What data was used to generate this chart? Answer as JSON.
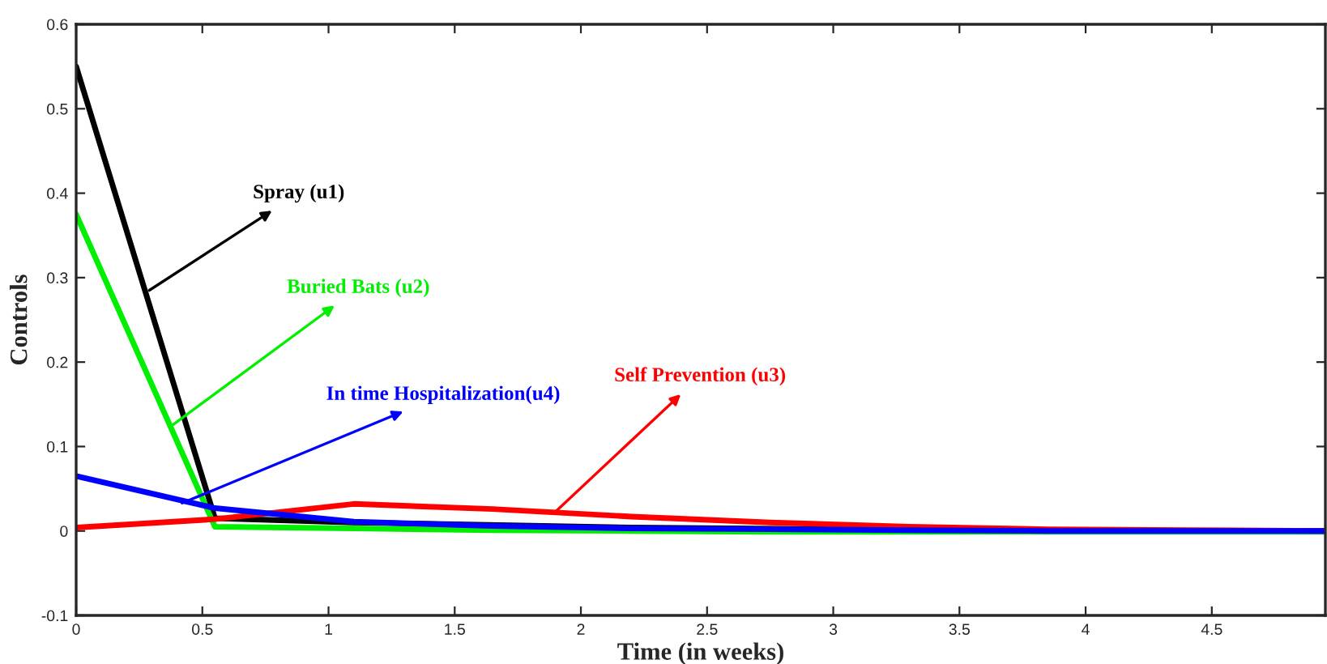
{
  "chart_data": {
    "type": "line",
    "xlabel": "Time (in weeks)",
    "ylabel": "Controls",
    "x": [
      0,
      0.55,
      1.1,
      1.65,
      2.2,
      2.75,
      3.3,
      3.85,
      4.4,
      4.95
    ],
    "series": [
      {
        "color": "#000000",
        "values": [
          0.55,
          0.015,
          0.01,
          null,
          0.004,
          null,
          null,
          0,
          0,
          0
        ]
      },
      {
        "color": "#00ee00",
        "values": [
          0.375,
          0.005,
          0.003,
          0.001,
          0,
          -0.001,
          -0.001,
          -0.001,
          -0.001,
          -0.001
        ]
      },
      {
        "color": "#ff0000",
        "values": [
          0.004,
          0.014,
          0.032,
          0.026,
          0.017,
          0.01,
          0.005,
          0.002,
          0.001,
          0
        ]
      },
      {
        "color": "#0000ff",
        "values": [
          0.065,
          0.027,
          0.011,
          0.006,
          0.003,
          0.002,
          0.001,
          0,
          0,
          0
        ]
      }
    ],
    "annotations": [
      {
        "text": "Spray (u1)",
        "x": 0.29,
        "y": 0.285
      },
      {
        "text": "Buried Bats (u2)",
        "x": 0.38,
        "y": 0.125
      },
      {
        "text": "Self Prevention (u3)",
        "x": 1.9,
        "y": 0.023
      },
      {
        "text": "In time Hospitalization(u4)",
        "x": 0.42,
        "y": 0.033
      }
    ],
    "xlim": [
      0,
      4.95
    ],
    "ylim": [
      -0.1,
      0.6
    ],
    "xticks": [
      0,
      0.5,
      1,
      1.5,
      2,
      2.5,
      3,
      3.5,
      4,
      4.5
    ],
    "yticks": [
      -0.1,
      0,
      0.1,
      0.2,
      0.3,
      0.4,
      0.5,
      0.6
    ],
    "grid": false,
    "legend": false,
    "marker": "none",
    "line_style": "solid"
  }
}
